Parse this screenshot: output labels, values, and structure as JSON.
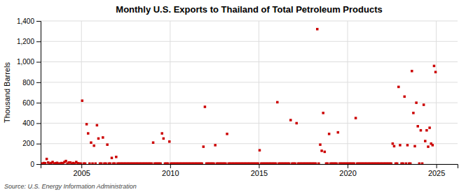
{
  "chart_data": {
    "type": "scatter",
    "title": "Monthly U.S. Exports to Thailand of Total Petroleum Products",
    "ylabel": "Thousand Barrels",
    "annotations": [
      "Source: U.S. Energy Information Administration"
    ],
    "color": "#cc0000",
    "marker": "square",
    "grid": true,
    "xlim": [
      2002.7,
      2026.2
    ],
    "xticks": [
      2005,
      2010,
      2015,
      2020,
      2025
    ],
    "ylim": [
      0,
      1400
    ],
    "yticks": [
      0,
      200,
      400,
      600,
      800,
      {
        "value": 1000,
        "label": "1,000"
      },
      {
        "value": 1200,
        "label": "1,200"
      },
      {
        "value": 1400,
        "label": "1,400"
      }
    ],
    "x": [
      2002.7917,
      2002.875,
      2002.9583,
      2003.0417,
      2003.125,
      2003.2083,
      2003.2917,
      2003.375,
      2003.4583,
      2003.5417,
      2003.625,
      2003.7083,
      2003.7917,
      2003.875,
      2003.9583,
      2004.0417,
      2004.125,
      2004.2083,
      2004.2917,
      2004.375,
      2004.4583,
      2004.5417,
      2004.625,
      2004.7083,
      2004.7917,
      2004.875,
      2004.9583,
      2005.0417,
      2005.125,
      2005.2083,
      2005.2917,
      2005.375,
      2005.4583,
      2005.5417,
      2005.625,
      2005.7083,
      2005.7917,
      2005.875,
      2005.9583,
      2006.0417,
      2006.125,
      2006.2083,
      2006.2917,
      2006.375,
      2006.4583,
      2006.5417,
      2006.625,
      2006.7083,
      2006.7917,
      2006.875,
      2006.9583,
      2007.0417,
      2007.125,
      2007.2083,
      2007.2917,
      2007.375,
      2007.4583,
      2007.5417,
      2007.625,
      2007.7083,
      2007.7917,
      2007.875,
      2007.9583,
      2008.0417,
      2008.125,
      2008.2083,
      2008.2917,
      2008.375,
      2008.4583,
      2008.5417,
      2008.625,
      2008.7083,
      2008.7917,
      2008.875,
      2008.9583,
      2009.0417,
      2009.125,
      2009.2083,
      2009.2917,
      2009.375,
      2009.4583,
      2009.5417,
      2009.625,
      2009.7083,
      2009.7917,
      2009.875,
      2009.9583,
      2010.0417,
      2010.125,
      2010.2083,
      2010.2917,
      2010.375,
      2010.4583,
      2010.5417,
      2010.625,
      2010.7083,
      2010.7917,
      2010.875,
      2010.9583,
      2011.0417,
      2011.125,
      2011.2083,
      2011.2917,
      2011.375,
      2011.4583,
      2011.5417,
      2011.625,
      2011.7083,
      2011.7917,
      2011.875,
      2011.9583,
      2012.0417,
      2012.125,
      2012.2083,
      2012.2917,
      2012.375,
      2012.4583,
      2012.5417,
      2012.625,
      2012.7083,
      2012.7917,
      2012.875,
      2012.9583,
      2013.0417,
      2013.125,
      2013.2083,
      2013.2917,
      2013.375,
      2013.4583,
      2013.5417,
      2013.625,
      2013.7083,
      2013.7917,
      2013.875,
      2013.9583,
      2014.0417,
      2014.125,
      2014.2083,
      2014.2917,
      2014.375,
      2014.4583,
      2014.5417,
      2014.625,
      2014.7083,
      2014.7917,
      2014.875,
      2014.9583,
      2015.0417,
      2015.125,
      2015.2083,
      2015.2917,
      2015.375,
      2015.4583,
      2015.5417,
      2015.625,
      2015.7083,
      2015.7917,
      2015.875,
      2015.9583,
      2016.0417,
      2016.125,
      2016.2083,
      2016.2917,
      2016.375,
      2016.4583,
      2016.5417,
      2016.625,
      2016.7083,
      2016.7917,
      2016.875,
      2016.9583,
      2017.0417,
      2017.125,
      2017.2083,
      2017.2917,
      2017.375,
      2017.4583,
      2017.5417,
      2017.625,
      2017.7083,
      2017.7917,
      2017.875,
      2017.9583,
      2018.0417,
      2018.125,
      2018.2083,
      2018.2917,
      2018.375,
      2018.4583,
      2018.5417,
      2018.625,
      2018.7083,
      2018.7917,
      2018.875,
      2018.9583,
      2019.0417,
      2019.125,
      2019.2083,
      2019.2917,
      2019.375,
      2019.4583,
      2019.5417,
      2019.625,
      2019.7083,
      2019.7917,
      2019.875,
      2019.9583,
      2020.0417,
      2020.125,
      2020.2083,
      2020.2917,
      2020.375,
      2020.4583,
      2020.5417,
      2020.625,
      2020.7083,
      2020.7917,
      2020.875,
      2020.9583,
      2021.0417,
      2021.125,
      2021.2083,
      2021.2917,
      2021.375,
      2021.4583,
      2021.5417,
      2021.625,
      2021.7083,
      2021.7917,
      2021.875,
      2021.9583,
      2022.0417,
      2022.125,
      2022.2083,
      2022.2917,
      2022.375,
      2022.4583,
      2022.5417,
      2022.625,
      2022.7083,
      2022.7917,
      2022.875,
      2022.9583,
      2023.0417,
      2023.125,
      2023.2083,
      2023.2917,
      2023.375,
      2023.4583,
      2023.5417,
      2023.625,
      2023.7083,
      2023.7917,
      2023.875,
      2023.9583,
      2024.0417,
      2024.125,
      2024.2083,
      2024.2917,
      2024.375,
      2024.4583,
      2024.5417,
      2024.625,
      2024.7083,
      2024.7917,
      2024.875,
      2024.9583
    ],
    "values": [
      5,
      10,
      8,
      50,
      15,
      5,
      10,
      20,
      5,
      8,
      12,
      5,
      5,
      10,
      8,
      20,
      30,
      5,
      15,
      15,
      5,
      10,
      5,
      20,
      8,
      5,
      5,
      620,
      5,
      5,
      390,
      300,
      5,
      210,
      5,
      180,
      5,
      380,
      250,
      5,
      5,
      260,
      5,
      5,
      190,
      5,
      5,
      60,
      5,
      5,
      70,
      5,
      5,
      5,
      5,
      5,
      5,
      5,
      5,
      5,
      5,
      5,
      5,
      5,
      5,
      5,
      5,
      5,
      5,
      5,
      5,
      5,
      5,
      5,
      5,
      210,
      5,
      5,
      5,
      5,
      5,
      300,
      250,
      5,
      5,
      5,
      220,
      5,
      5,
      5,
      5,
      5,
      5,
      5,
      5,
      5,
      5,
      5,
      5,
      5,
      5,
      5,
      5,
      5,
      5,
      5,
      5,
      5,
      5,
      170,
      560,
      5,
      5,
      5,
      5,
      5,
      5,
      185,
      5,
      5,
      5,
      5,
      5,
      5,
      5,
      295,
      5,
      5,
      5,
      5,
      5,
      5,
      5,
      5,
      5,
      5,
      5,
      5,
      5,
      5,
      5,
      5,
      5,
      5,
      5,
      5,
      5,
      135,
      5,
      5,
      5,
      5,
      5,
      5,
      5,
      5,
      5,
      5,
      5,
      605,
      5,
      5,
      5,
      5,
      5,
      5,
      5,
      5,
      430,
      5,
      5,
      5,
      400,
      5,
      5,
      5,
      5,
      5,
      5,
      5,
      5,
      5,
      5,
      5,
      5,
      5,
      1320,
      5,
      190,
      130,
      500,
      120,
      5,
      5,
      295,
      5,
      5,
      5,
      5,
      5,
      310,
      5,
      5,
      5,
      5,
      5,
      5,
      5,
      5,
      5,
      5,
      5,
      450,
      5,
      5,
      5,
      5,
      5,
      5,
      5,
      5,
      5,
      5,
      5,
      5,
      5,
      5,
      5,
      5,
      5,
      5,
      5,
      5,
      5,
      5,
      5,
      5,
      200,
      175,
      5,
      5,
      755,
      185,
      5,
      5,
      660,
      5,
      185,
      5,
      5,
      910,
      500,
      175,
      600,
      370,
      5,
      330,
      5,
      580,
      225,
      330,
      170,
      355,
      200,
      185,
      960,
      900
    ]
  }
}
